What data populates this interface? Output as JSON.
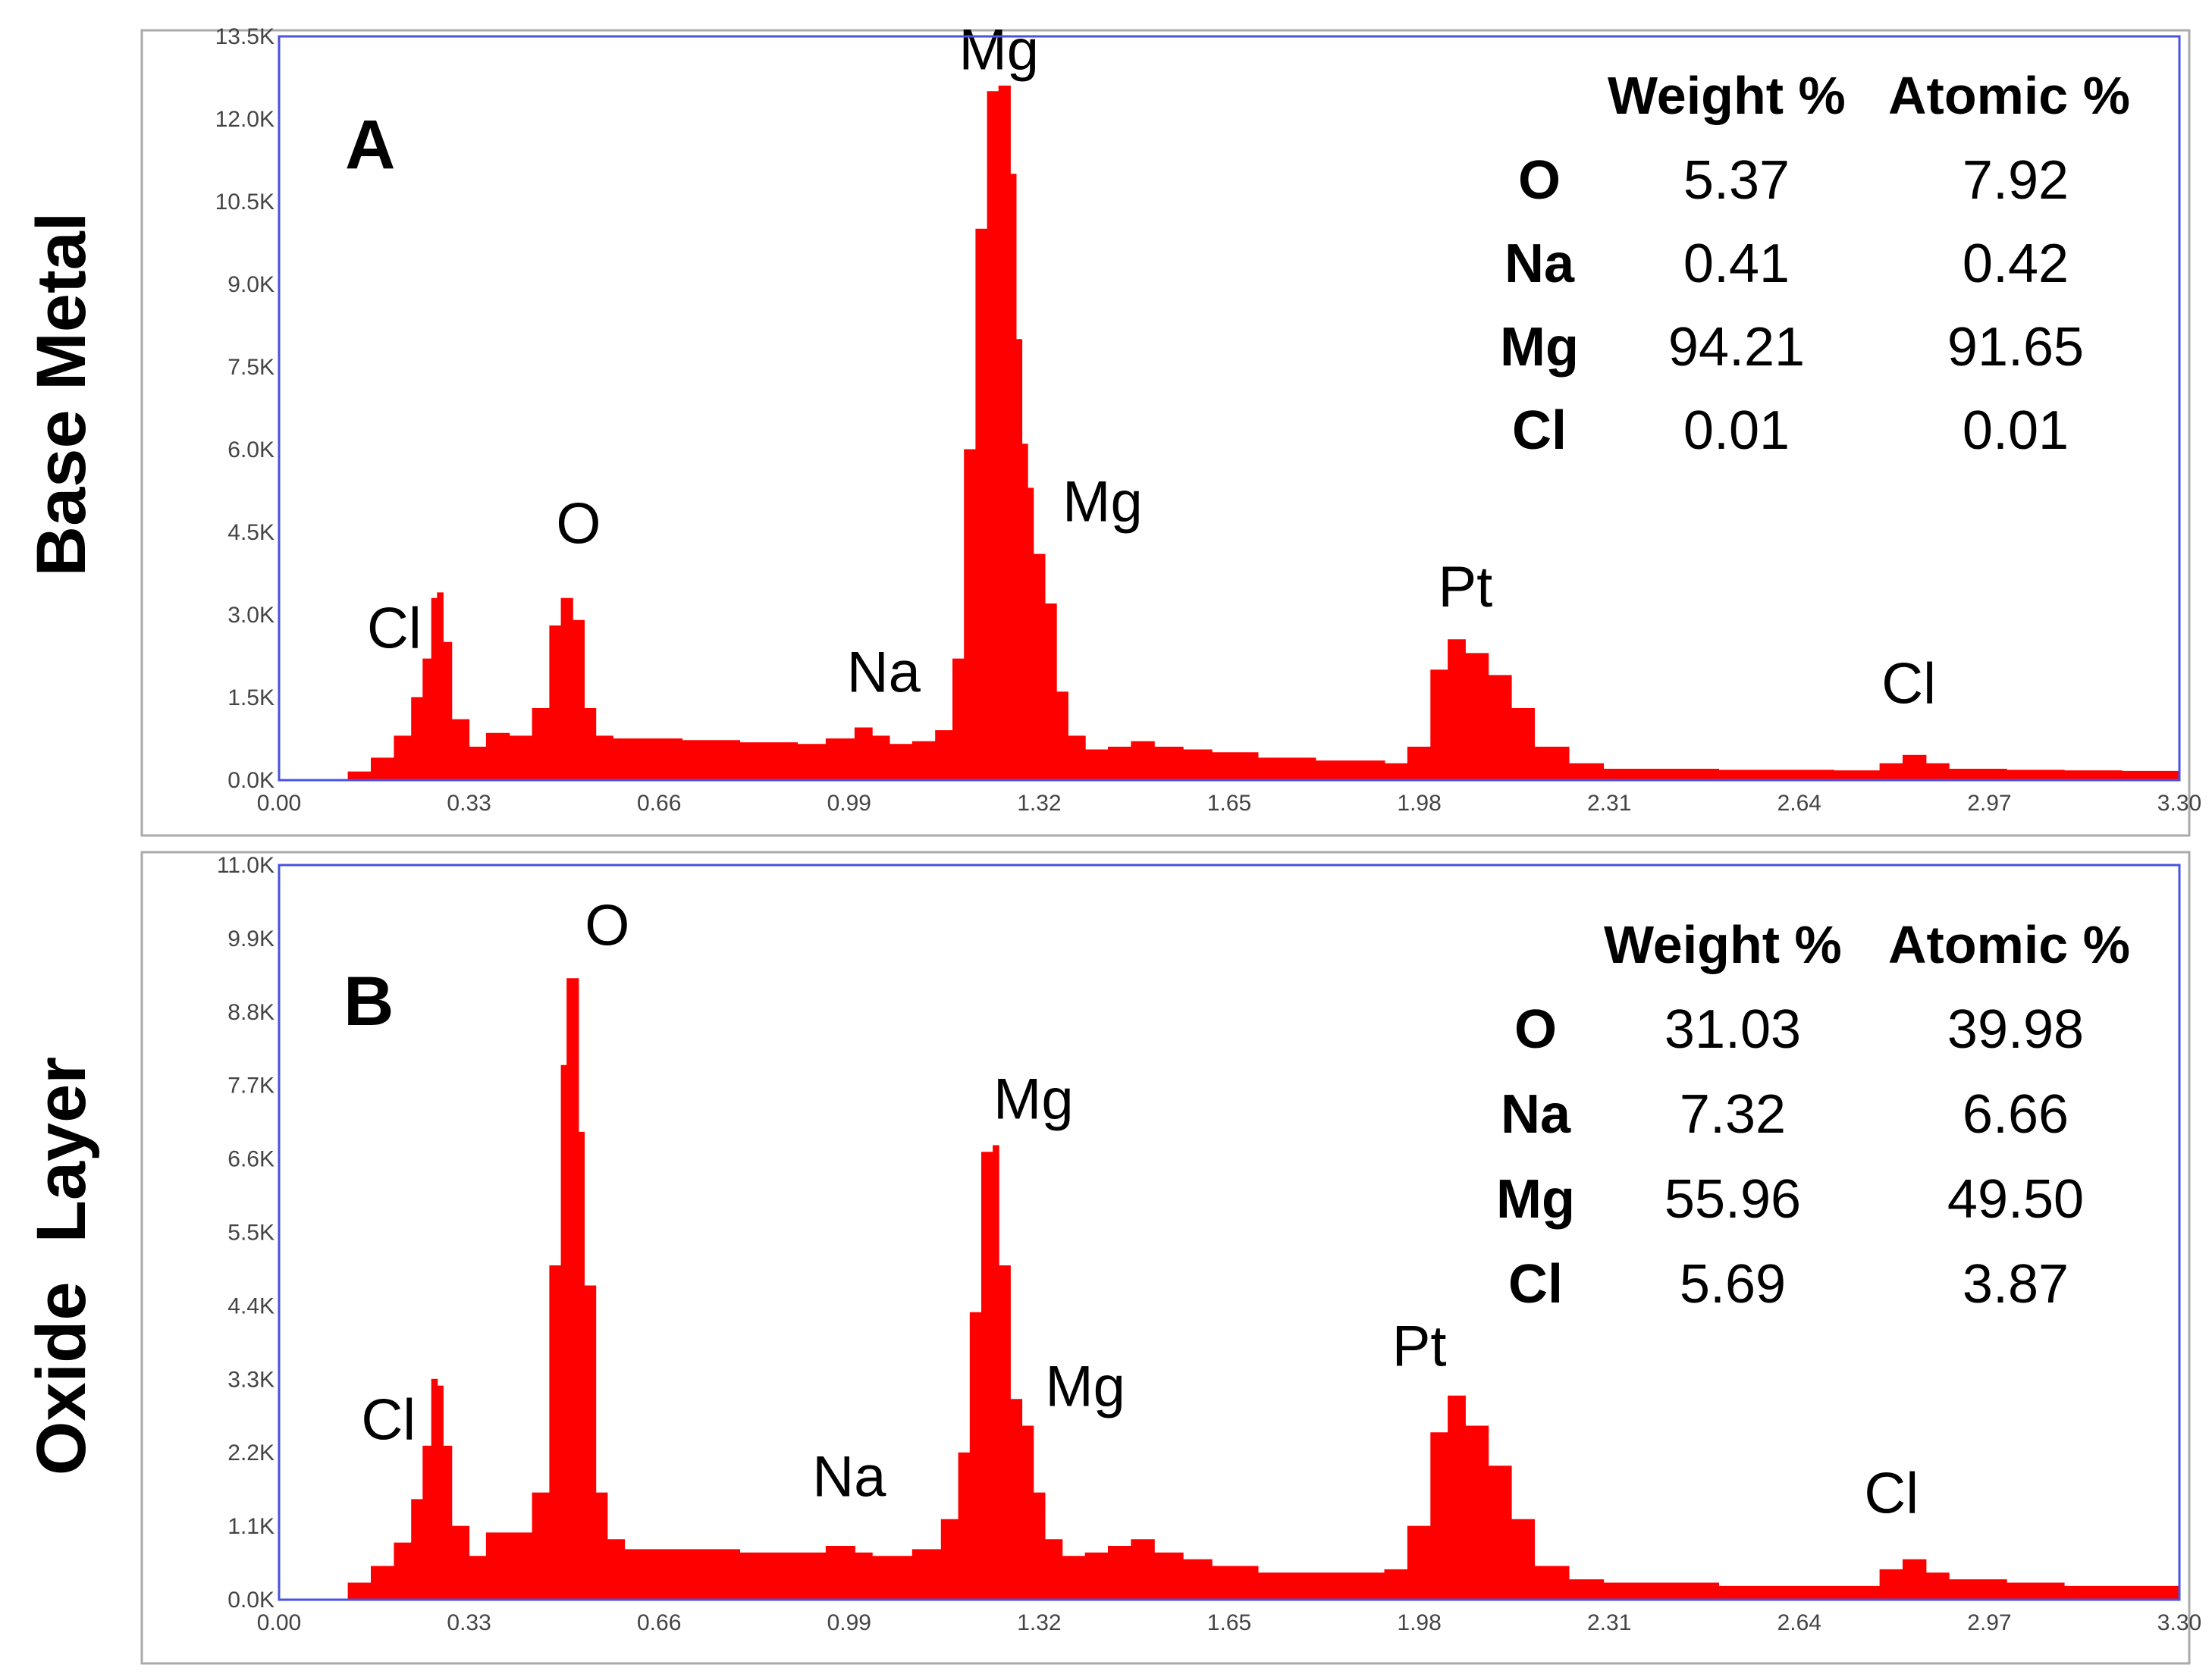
{
  "chart_data": [
    {
      "type": "area",
      "panel_letter": "A",
      "side_label": "Base Metal",
      "xlim": [
        0,
        3.3
      ],
      "ylim": [
        0,
        13500
      ],
      "x_ticks": [
        "0.00",
        "0.33",
        "0.66",
        "0.99",
        "1.32",
        "1.65",
        "1.98",
        "2.31",
        "2.64",
        "2.97",
        "3.30"
      ],
      "y_ticks": [
        "0.0K",
        "1.5K",
        "3.0K",
        "4.5K",
        "6.0K",
        "7.5K",
        "9.0K",
        "10.5K",
        "12.0K",
        "13.5K"
      ],
      "spectrum": {
        "x": [
          0.09,
          0.12,
          0.16,
          0.2,
          0.23,
          0.25,
          0.265,
          0.275,
          0.285,
          0.3,
          0.33,
          0.36,
          0.4,
          0.44,
          0.47,
          0.49,
          0.51,
          0.53,
          0.55,
          0.58,
          0.62,
          0.7,
          0.8,
          0.9,
          0.95,
          1.0,
          1.03,
          1.06,
          1.1,
          1.14,
          1.17,
          1.19,
          1.21,
          1.23,
          1.25,
          1.27,
          1.28,
          1.29,
          1.3,
          1.31,
          1.33,
          1.35,
          1.37,
          1.4,
          1.44,
          1.48,
          1.52,
          1.57,
          1.62,
          1.7,
          1.8,
          1.92,
          1.96,
          2.0,
          2.03,
          2.06,
          2.1,
          2.14,
          2.18,
          2.24,
          2.3,
          2.5,
          2.7,
          2.78,
          2.82,
          2.86,
          2.9,
          3.0,
          3.1,
          3.2,
          3.3
        ],
        "y": [
          0,
          150,
          400,
          800,
          1500,
          2200,
          3300,
          3400,
          2500,
          1100,
          600,
          850,
          800,
          1300,
          2800,
          3300,
          2900,
          1300,
          800,
          750,
          750,
          720,
          680,
          650,
          750,
          950,
          800,
          650,
          700,
          900,
          2200,
          6000,
          10000,
          12500,
          12600,
          11000,
          8000,
          6100,
          5300,
          4100,
          3200,
          1600,
          800,
          550,
          600,
          700,
          600,
          550,
          500,
          400,
          350,
          300,
          600,
          2000,
          2550,
          2300,
          1900,
          1300,
          600,
          300,
          200,
          180,
          170,
          300,
          450,
          300,
          200,
          180,
          170,
          160,
          150
        ]
      },
      "peak_labels": [
        {
          "text": "Cl",
          "x": 0.2,
          "y": 2400
        },
        {
          "text": "O",
          "x": 0.52,
          "y": 4300
        },
        {
          "text": "Na",
          "x": 1.05,
          "y": 1600
        },
        {
          "text": "Mg",
          "x": 1.25,
          "y": 12900
        },
        {
          "text": "Mg",
          "x": 1.43,
          "y": 4700
        },
        {
          "text": "Pt",
          "x": 2.06,
          "y": 3150
        },
        {
          "text": "Cl",
          "x": 2.83,
          "y": 1400
        }
      ],
      "table": {
        "headers": [
          "Weight %",
          "Atomic %"
        ],
        "rows": [
          {
            "element": "O",
            "weight": "5.37",
            "atomic": "7.92"
          },
          {
            "element": "Na",
            "weight": "0.41",
            "atomic": "0.42"
          },
          {
            "element": "Mg",
            "weight": "94.21",
            "atomic": "91.65"
          },
          {
            "element": "Cl",
            "weight": "0.01",
            "atomic": "0.01"
          }
        ]
      }
    },
    {
      "type": "area",
      "panel_letter": "B",
      "side_label": "Oxide  Layer",
      "xlim": [
        0,
        3.3
      ],
      "ylim": [
        0,
        11000
      ],
      "x_ticks": [
        "0.00",
        "0.33",
        "0.66",
        "0.99",
        "1.32",
        "1.65",
        "1.98",
        "2.31",
        "2.64",
        "2.97",
        "3.30"
      ],
      "y_ticks": [
        "0.0K",
        "1.1K",
        "2.2K",
        "3.3K",
        "4.4K",
        "5.5K",
        "6.6K",
        "7.7K",
        "8.8K",
        "9.9K",
        "11.0K"
      ],
      "spectrum": {
        "x": [
          0.09,
          0.12,
          0.16,
          0.2,
          0.23,
          0.25,
          0.265,
          0.275,
          0.285,
          0.3,
          0.33,
          0.36,
          0.4,
          0.44,
          0.47,
          0.49,
          0.5,
          0.51,
          0.52,
          0.53,
          0.55,
          0.57,
          0.6,
          0.7,
          0.8,
          0.9,
          0.95,
          1.0,
          1.03,
          1.06,
          1.1,
          1.15,
          1.18,
          1.2,
          1.22,
          1.24,
          1.25,
          1.27,
          1.29,
          1.31,
          1.33,
          1.36,
          1.4,
          1.44,
          1.48,
          1.52,
          1.57,
          1.62,
          1.7,
          1.8,
          1.92,
          1.96,
          2.0,
          2.03,
          2.06,
          2.1,
          2.14,
          2.18,
          2.24,
          2.3,
          2.5,
          2.7,
          2.78,
          2.82,
          2.86,
          2.9,
          3.0,
          3.1,
          3.2,
          3.3
        ],
        "y": [
          0,
          250,
          500,
          850,
          1500,
          2300,
          3300,
          3200,
          2300,
          1100,
          650,
          1000,
          1000,
          1600,
          5000,
          8000,
          9300,
          9300,
          7000,
          4700,
          1600,
          900,
          750,
          750,
          700,
          700,
          800,
          700,
          650,
          650,
          750,
          1200,
          2200,
          4300,
          6700,
          6800,
          5000,
          3000,
          2600,
          1600,
          900,
          650,
          700,
          800,
          900,
          700,
          600,
          500,
          400,
          400,
          450,
          1100,
          2500,
          3050,
          2600,
          2000,
          1200,
          500,
          300,
          250,
          200,
          200,
          450,
          600,
          400,
          300,
          250,
          200,
          200,
          150
        ]
      },
      "peak_labels": [
        {
          "text": "Cl",
          "x": 0.19,
          "y": 2400
        },
        {
          "text": "O",
          "x": 0.57,
          "y": 9800
        },
        {
          "text": "Na",
          "x": 0.99,
          "y": 1550
        },
        {
          "text": "Mg",
          "x": 1.31,
          "y": 7200
        },
        {
          "text": "Mg",
          "x": 1.4,
          "y": 2900
        },
        {
          "text": "Pt",
          "x": 1.98,
          "y": 3500
        },
        {
          "text": "Cl",
          "x": 2.8,
          "y": 1300
        }
      ],
      "table": {
        "headers": [
          "Weight %",
          "Atomic %"
        ],
        "rows": [
          {
            "element": "O",
            "weight": "31.03",
            "atomic": "39.98"
          },
          {
            "element": "Na",
            "weight": "7.32",
            "atomic": "6.66"
          },
          {
            "element": "Mg",
            "weight": "55.96",
            "atomic": "49.50"
          },
          {
            "element": "Cl",
            "weight": "5.69",
            "atomic": "3.87"
          }
        ]
      }
    }
  ],
  "colors": {
    "spectrum_fill": "#ff0000",
    "plot_border": "#4a52e0",
    "frame_border": "#aaaaaa",
    "tick_text": "#444444"
  }
}
